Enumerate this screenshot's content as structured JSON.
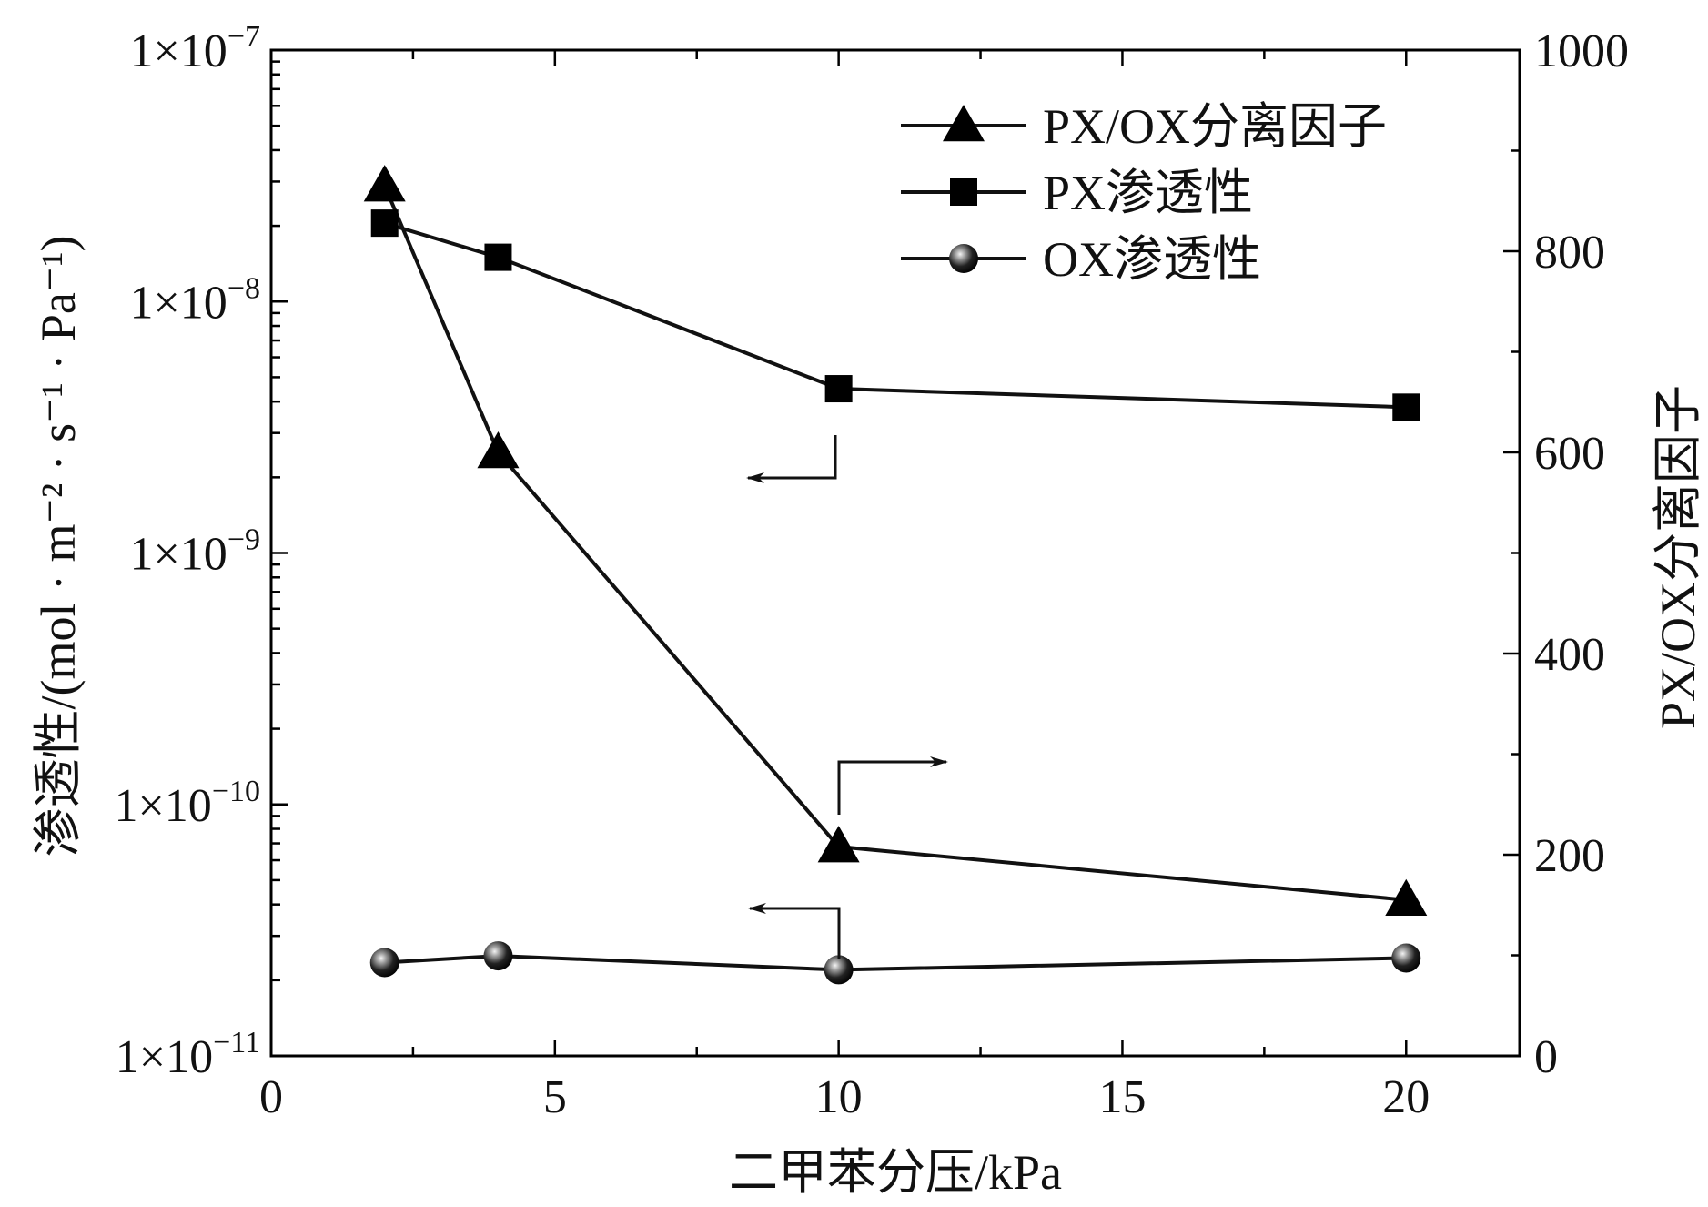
{
  "chart_data": {
    "type": "line",
    "xlabel": "二甲苯分压/kPa",
    "ylabel_left": "渗透性/(mol · m⁻² · s⁻¹ · Pa⁻¹)",
    "ylabel_right": "PX/OX分离因子",
    "xlim": [
      0,
      22
    ],
    "ylim_left": [
      1e-11,
      1e-07
    ],
    "ylim_right": [
      0,
      1000
    ],
    "yscale_left": "log",
    "yscale_right": "linear",
    "x_ticks": [
      "0",
      "5",
      "10",
      "15",
      "20"
    ],
    "y_left_ticks": [
      {
        "mant": "1×10",
        "exp": "−7",
        "value": 1e-07
      },
      {
        "mant": "1×10",
        "exp": "−8",
        "value": 1e-08
      },
      {
        "mant": "1×10",
        "exp": "−9",
        "value": 1e-09
      },
      {
        "mant": "1×10",
        "exp": "−10",
        "value": 1e-10
      },
      {
        "mant": "1×10",
        "exp": "−11",
        "value": 1e-11
      }
    ],
    "y_right_ticks": [
      "0",
      "200",
      "400",
      "600",
      "800",
      "1000"
    ],
    "legend_position": "top-right",
    "grid": false,
    "series": [
      {
        "name": "PX/OX分离因子",
        "axis": "right",
        "marker": "triangle",
        "x": [
          2,
          4,
          10,
          20
        ],
        "y": [
          865,
          600,
          208,
          155
        ]
      },
      {
        "name": "PX渗透性",
        "axis": "left",
        "marker": "square",
        "x": [
          2,
          4,
          10,
          20
        ],
        "y": [
          2.05e-08,
          1.5e-08,
          4.5e-09,
          3.8e-09
        ]
      },
      {
        "name": "OX渗透性",
        "axis": "left",
        "marker": "sphere",
        "x": [
          2,
          4,
          10,
          20
        ],
        "y": [
          2.35e-11,
          2.5e-11,
          2.2e-11,
          2.45e-11
        ]
      }
    ]
  }
}
